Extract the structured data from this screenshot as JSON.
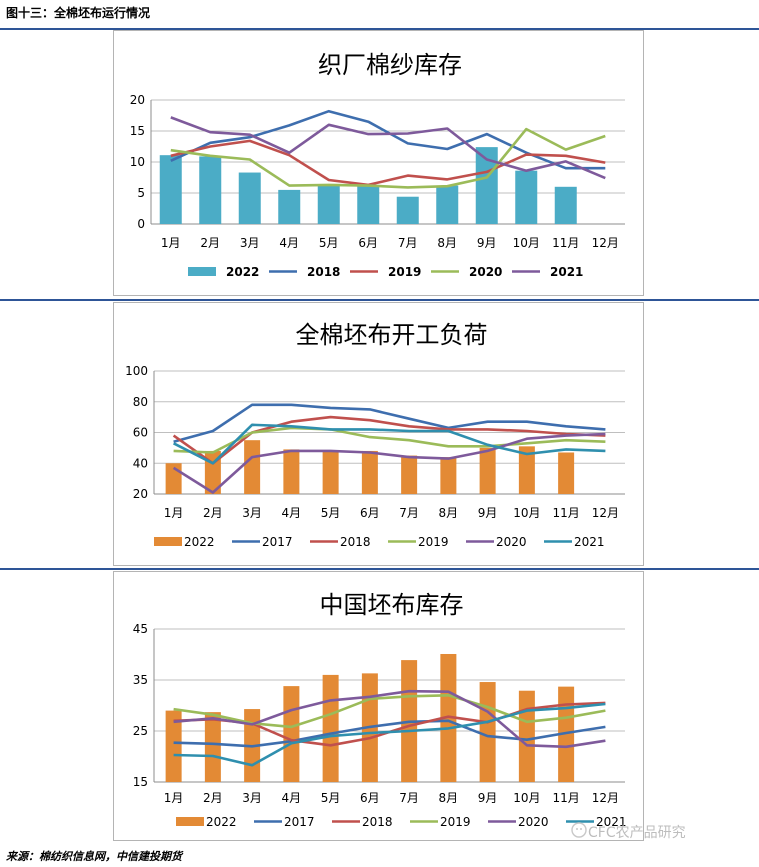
{
  "figure_title": "图十三：全棉坯布运行情况",
  "source": "来源：棉纺织信息网，中信建投期货",
  "watermark": "CFC农产品研究",
  "colors": {
    "bar_teal": "#4bacc6",
    "bar_orange": "#e38a35",
    "blue": "#3e6eae",
    "red": "#c0504d",
    "green": "#9bbb59",
    "purple": "#7e5a9b",
    "teal_line": "#2f8fae",
    "rule": "#2e5597",
    "grid": "#bfbfbf"
  },
  "chart_data": [
    {
      "type": "bar",
      "title": "织厂棉纱库存",
      "categories": [
        "1月",
        "2月",
        "3月",
        "4月",
        "5月",
        "6月",
        "7月",
        "8月",
        "9月",
        "10月",
        "11月",
        "12月"
      ],
      "ylim": [
        0,
        20
      ],
      "yticks": [
        0,
        5,
        10,
        15,
        20
      ],
      "grid": true,
      "legend": "bottom",
      "bars": {
        "name": "2022",
        "color_key": "bar_teal",
        "values": [
          11.1,
          10.9,
          8.3,
          5.5,
          6.4,
          6.3,
          4.4,
          6.2,
          12.4,
          8.6,
          6.0,
          null
        ]
      },
      "series": [
        {
          "name": "2018",
          "color_key": "blue",
          "values": [
            10.2,
            13.1,
            14.0,
            15.9,
            18.2,
            16.5,
            13.0,
            12.1,
            14.5,
            11.5,
            9.0,
            9.0
          ]
        },
        {
          "name": "2019",
          "color_key": "red",
          "values": [
            11.0,
            12.5,
            13.4,
            11.1,
            7.1,
            6.3,
            7.8,
            7.2,
            8.4,
            11.2,
            11.0,
            9.9
          ]
        },
        {
          "name": "2020",
          "color_key": "green",
          "values": [
            11.9,
            11.0,
            10.4,
            6.2,
            6.3,
            6.2,
            5.9,
            6.1,
            7.5,
            15.3,
            12.0,
            14.2
          ]
        },
        {
          "name": "2021",
          "color_key": "purple",
          "values": [
            17.2,
            14.8,
            14.4,
            11.5,
            16.0,
            14.5,
            14.6,
            15.4,
            10.4,
            8.6,
            10.1,
            7.4
          ]
        }
      ]
    },
    {
      "type": "bar",
      "title": "全棉坯布开工负荷",
      "categories": [
        "1月",
        "2月",
        "3月",
        "4月",
        "5月",
        "6月",
        "7月",
        "8月",
        "9月",
        "10月",
        "11月",
        "12月"
      ],
      "ylim": [
        20,
        100
      ],
      "yticks": [
        20,
        40,
        60,
        80,
        100
      ],
      "grid": true,
      "legend": "bottom",
      "bars": {
        "name": "2022",
        "color_key": "bar_orange",
        "values": [
          40,
          48,
          55,
          49,
          48,
          48,
          45,
          44,
          50,
          51,
          47,
          null
        ]
      },
      "series": [
        {
          "name": "2017",
          "color_key": "blue",
          "values": [
            54,
            61,
            78,
            78,
            76,
            75,
            69,
            63,
            67,
            67,
            64,
            62
          ]
        },
        {
          "name": "2018",
          "color_key": "red",
          "values": [
            58,
            40,
            60,
            67,
            70,
            68,
            64,
            62,
            62,
            61,
            59,
            58
          ]
        },
        {
          "name": "2019",
          "color_key": "green",
          "values": [
            48,
            47,
            60,
            63,
            62,
            57,
            55,
            51,
            51,
            53,
            55,
            54
          ]
        },
        {
          "name": "2020",
          "color_key": "purple",
          "values": [
            37,
            21,
            44,
            48,
            48,
            47,
            44,
            43,
            48,
            56,
            58,
            59
          ]
        },
        {
          "name": "2021",
          "color_key": "teal_line",
          "values": [
            53,
            40,
            65,
            64,
            62,
            62,
            61,
            61,
            52,
            46,
            49,
            48
          ]
        }
      ]
    },
    {
      "type": "bar",
      "title": "中国坯布库存",
      "categories": [
        "1月",
        "2月",
        "3月",
        "4月",
        "5月",
        "6月",
        "7月",
        "8月",
        "9月",
        "10月",
        "11月",
        "12月"
      ],
      "ylim": [
        15,
        45
      ],
      "yticks": [
        15,
        25,
        35,
        45
      ],
      "grid": true,
      "legend": "bottom",
      "bars": {
        "name": "2022",
        "color_key": "bar_orange",
        "values": [
          29.0,
          28.7,
          29.3,
          33.8,
          36.0,
          36.3,
          38.9,
          40.1,
          34.6,
          32.9,
          33.7,
          null
        ]
      },
      "series": [
        {
          "name": "2017",
          "color_key": "blue",
          "values": [
            22.7,
            22.5,
            22.0,
            23.0,
            24.5,
            25.8,
            26.8,
            27.0,
            24.0,
            23.3,
            24.6,
            25.8
          ]
        },
        {
          "name": "2018",
          "color_key": "red",
          "values": [
            27.0,
            27.3,
            26.5,
            23.2,
            22.2,
            23.6,
            26.0,
            27.8,
            26.7,
            29.3,
            30.2,
            30.5
          ]
        },
        {
          "name": "2019",
          "color_key": "green",
          "values": [
            29.3,
            28.2,
            26.5,
            25.8,
            28.3,
            31.3,
            31.8,
            32.0,
            29.7,
            26.8,
            27.6,
            29.0
          ]
        },
        {
          "name": "2020",
          "color_key": "purple",
          "values": [
            26.8,
            27.5,
            26.3,
            29.1,
            31.0,
            31.7,
            32.8,
            32.7,
            28.8,
            22.2,
            21.9,
            23.1
          ]
        },
        {
          "name": "2021",
          "color_key": "teal_line",
          "values": [
            20.3,
            20.1,
            18.3,
            22.6,
            24.0,
            24.6,
            25.0,
            25.5,
            26.8,
            29.0,
            29.5,
            30.3
          ]
        }
      ]
    }
  ]
}
